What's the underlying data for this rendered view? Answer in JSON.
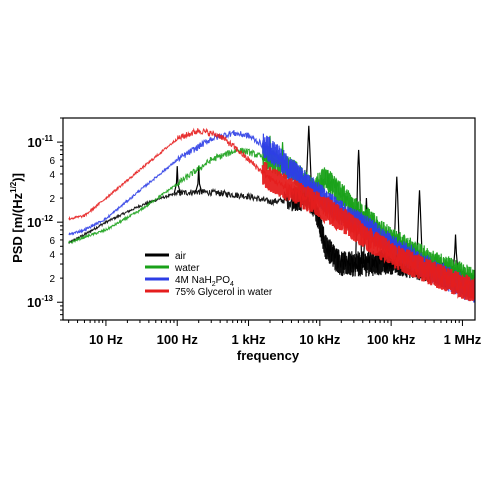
{
  "chart_data": {
    "type": "line",
    "xlabel": "frequency",
    "ylabel": "PSD [m/(Hz",
    "ylabel_sup": "1/2",
    "ylabel_end": ")]",
    "x_scale": "log",
    "y_scale": "log",
    "xlim": [
      2.5,
      1500000
    ],
    "ylim": [
      6e-14,
      2e-11
    ],
    "x_ticks": [
      {
        "value": 10,
        "label": "10  Hz"
      },
      {
        "value": 100,
        "label": "100  Hz"
      },
      {
        "value": 1000,
        "label": "1 kHz"
      },
      {
        "value": 10000,
        "label": "10 kHz"
      },
      {
        "value": 100000,
        "label": "100 kHz"
      },
      {
        "value": 1000000,
        "label": "1 MHz"
      }
    ],
    "y_major_ticks": [
      {
        "value": 1e-11,
        "base": "10",
        "exp": "-11"
      },
      {
        "value": 1e-12,
        "base": "10",
        "exp": "-12"
      },
      {
        "value": 1e-13,
        "base": "10",
        "exp": "-13"
      }
    ],
    "y_minor_ticks": [
      {
        "value": 6e-12,
        "label": "6"
      },
      {
        "value": 4e-12,
        "label": "4"
      },
      {
        "value": 2e-12,
        "label": "2"
      },
      {
        "value": 6e-13,
        "label": "6"
      },
      {
        "value": 4e-13,
        "label": "4"
      },
      {
        "value": 2e-13,
        "label": "2"
      }
    ],
    "legend_position": "lower-left",
    "series": [
      {
        "name": "air",
        "color": "#000000",
        "x": [
          3,
          5,
          10,
          30,
          60,
          100,
          200,
          400,
          1000,
          2000,
          4000,
          6000,
          7000,
          9000,
          12000,
          20000,
          40000,
          100000,
          300000,
          1000000,
          1500000
        ],
        "y": [
          5.5e-13,
          7e-13,
          1e-12,
          1.6e-12,
          2e-12,
          2.3e-12,
          2.4e-12,
          2.3e-12,
          2.1e-12,
          1.8e-12,
          1.9e-12,
          2e-12,
          2.1e-12,
          1.3e-12,
          5e-13,
          3e-13,
          3e-13,
          3.2e-13,
          2.6e-13,
          1.8e-13,
          1.5e-13
        ],
        "peaks": [
          {
            "x": 100,
            "y": 5e-12
          },
          {
            "x": 200,
            "y": 5e-12
          },
          {
            "x": 7000,
            "y": 1.6e-11
          },
          {
            "x": 35000,
            "y": 8e-12
          },
          {
            "x": 45000,
            "y": 2e-12
          },
          {
            "x": 120000,
            "y": 3.7e-12
          },
          {
            "x": 250000,
            "y": 2.5e-12
          },
          {
            "x": 800000,
            "y": 7e-13
          }
        ]
      },
      {
        "name": "water",
        "color": "#19a119",
        "x": [
          3,
          5,
          10,
          30,
          100,
          300,
          700,
          1000,
          2000,
          4000,
          8000,
          12000,
          20000,
          40000,
          100000,
          300000,
          1000000,
          1500000
        ],
        "y": [
          5.5e-13,
          6.5e-13,
          8e-13,
          1.4e-12,
          3e-12,
          6e-12,
          8e-12,
          7.5e-12,
          6e-12,
          4.5e-12,
          2.5e-12,
          3.5e-12,
          2.2e-12,
          1.2e-12,
          6e-13,
          3.5e-13,
          2.2e-13,
          1.8e-13
        ],
        "peaks": [
          {
            "x": 2000,
            "y": 1.2e-11
          },
          {
            "x": 3000,
            "y": 1e-11
          },
          {
            "x": 13000,
            "y": 4.5e-12
          }
        ]
      },
      {
        "name": "4M NaH2PO4",
        "color": "#2d3ee6",
        "x": [
          3,
          5,
          10,
          30,
          100,
          300,
          600,
          1000,
          2000,
          4000,
          8000,
          20000,
          50000,
          100000,
          300000,
          1000000,
          1500000
        ],
        "y": [
          7e-13,
          8e-13,
          1.1e-12,
          2.5e-12,
          6e-12,
          1.1e-11,
          1.3e-11,
          1.2e-11,
          8e-12,
          4.5e-12,
          2.5e-12,
          1.3e-12,
          8e-13,
          5e-13,
          2.8e-13,
          1.6e-13,
          1.4e-13
        ],
        "peaks": []
      },
      {
        "name": "75% Glycerol in water",
        "color": "#e51d1d",
        "x": [
          3,
          5,
          10,
          30,
          100,
          200,
          400,
          700,
          1000,
          2000,
          4000,
          8000,
          20000,
          50000,
          100000,
          300000,
          1000000,
          1500000
        ],
        "y": [
          1.1e-12,
          1.2e-12,
          2e-12,
          4.5e-12,
          1.1e-11,
          1.4e-11,
          1.2e-11,
          8e-12,
          6e-12,
          3.5e-12,
          2.5e-12,
          1.8e-12,
          1.1e-12,
          6e-13,
          4e-13,
          2.5e-13,
          1.6e-13,
          1.4e-13
        ],
        "peaks": []
      }
    ],
    "legend_labels": [
      {
        "name": "air",
        "text": "air",
        "sub": "",
        "text_end": ""
      },
      {
        "name": "water",
        "text": "water",
        "sub": "",
        "text_end": ""
      },
      {
        "name": "4M NaH2PO4",
        "text": "4M NaH",
        "sub": "2",
        "text_mid": "PO",
        "sub2": "4"
      },
      {
        "name": "75% Glycerol in water",
        "text": "75% Glycerol in water",
        "sub": "",
        "text_end": ""
      }
    ]
  }
}
